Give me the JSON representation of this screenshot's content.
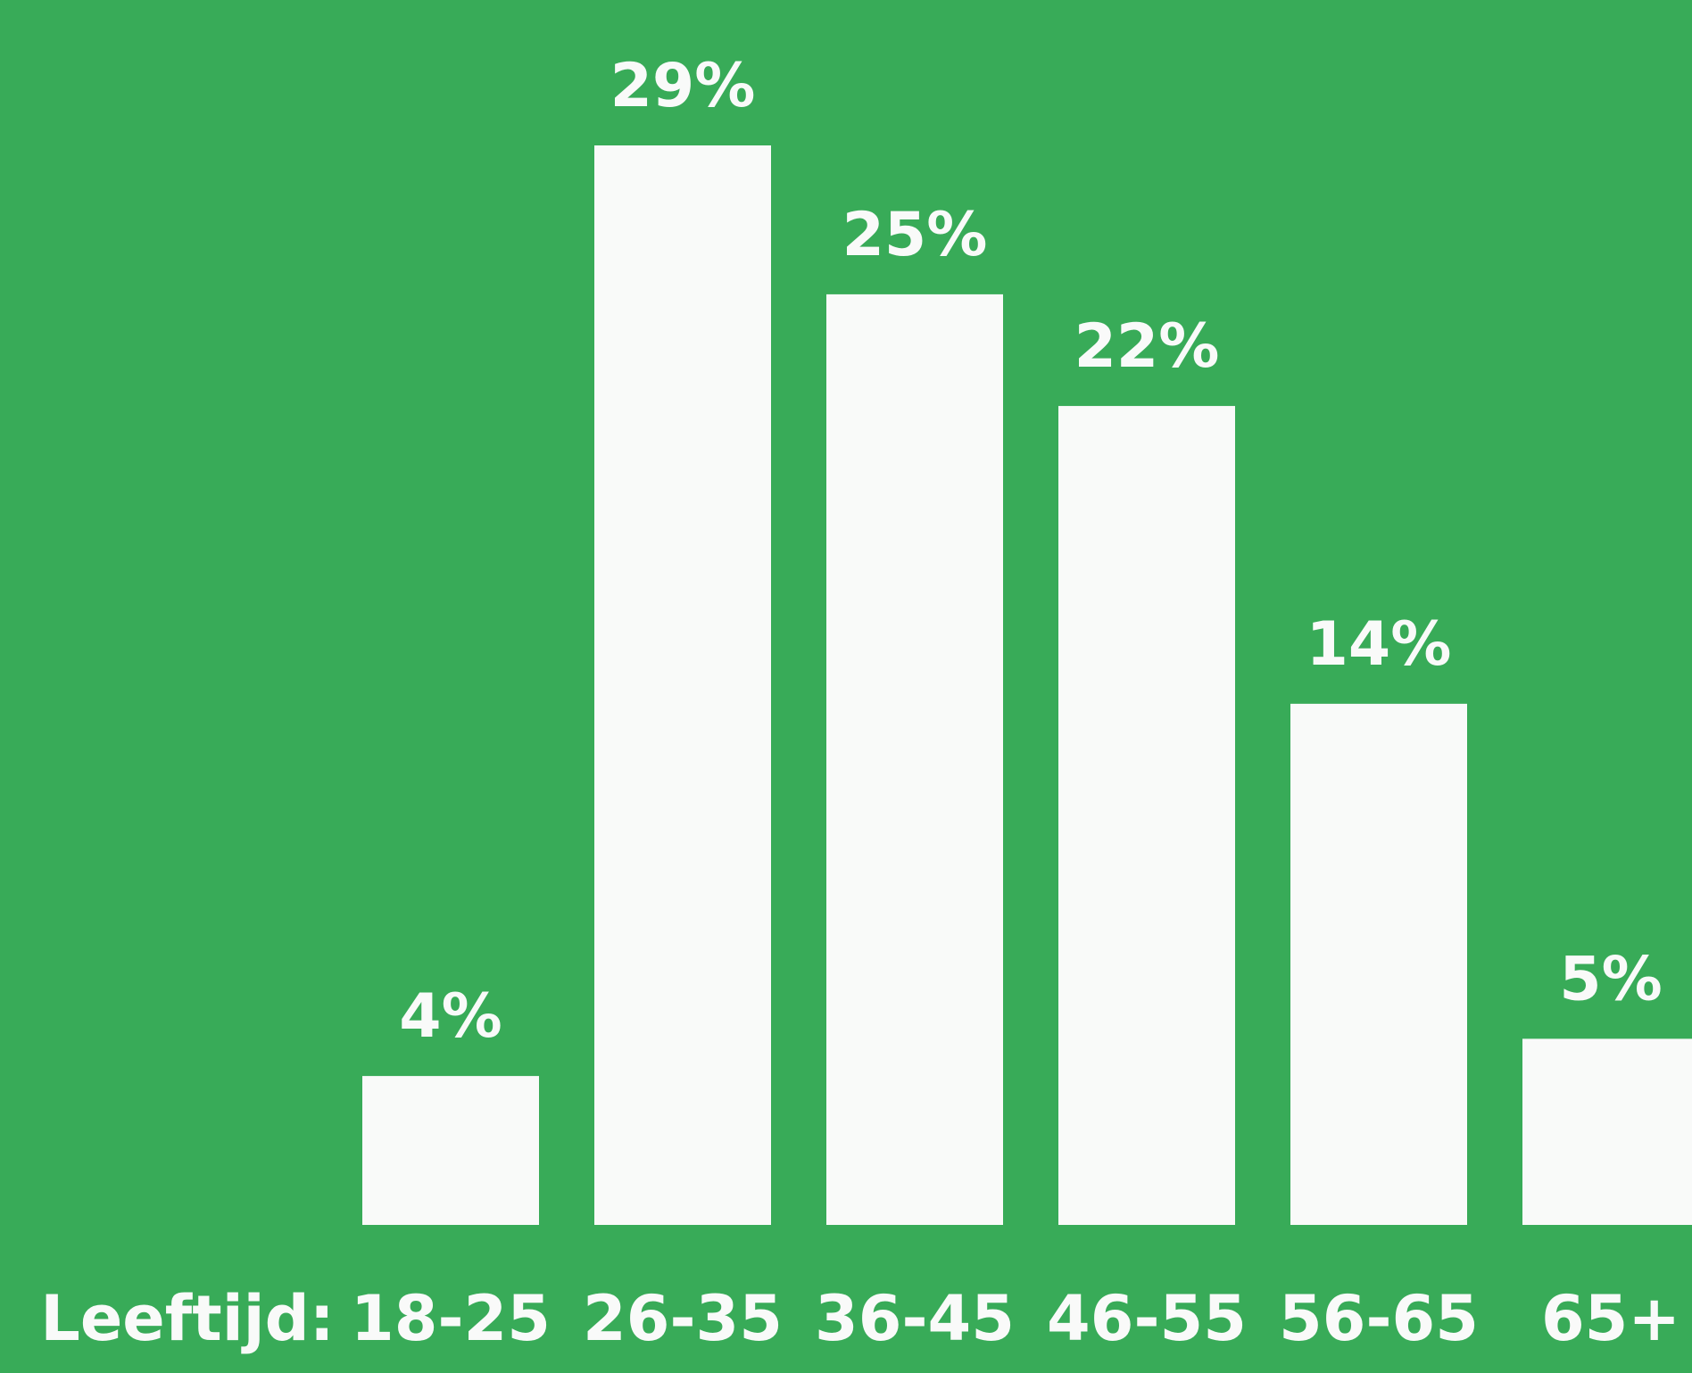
{
  "colors": {
    "background": "#38ab58",
    "bar": "#f9faf9",
    "text": "#f9faf9"
  },
  "chart_data": {
    "type": "bar",
    "xlabel": "Leeftijd:",
    "categories": [
      "18-25",
      "26-35",
      "36-45",
      "46-55",
      "56-65",
      "65+"
    ],
    "values": [
      4,
      29,
      25,
      22,
      14,
      5
    ],
    "value_labels": [
      "4%",
      "29%",
      "25%",
      "22%",
      "14%",
      "5%"
    ],
    "unit": "%",
    "ylim": [
      0,
      29
    ],
    "grid": false,
    "legend": "none",
    "yaxis_visible": false
  }
}
